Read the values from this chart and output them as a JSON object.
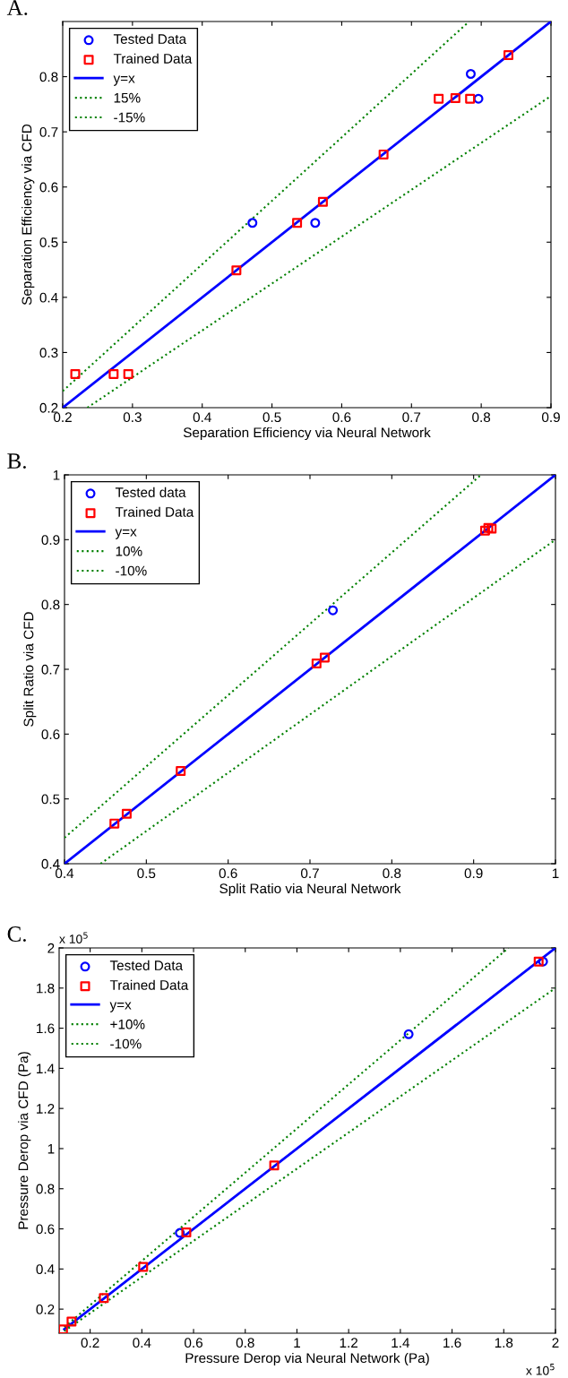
{
  "chart_data": [
    {
      "type": "scatter",
      "title": "A.",
      "xlabel": "Separation Efficiency via Neural Network",
      "ylabel": "Separation Efficiency via CFD",
      "xlim": [
        0.2,
        0.9
      ],
      "ylim": [
        0.2,
        0.9
      ],
      "xticks": [
        0.2,
        0.3,
        0.4,
        0.5,
        0.6,
        0.7,
        0.8,
        0.9
      ],
      "yticks": [
        0.2,
        0.3,
        0.4,
        0.5,
        0.6,
        0.7,
        0.8
      ],
      "grid": false,
      "legend": "top left",
      "series": [
        {
          "name": "Tested Data",
          "marker": "circle",
          "color": "#0000ff",
          "x": [
            0.472,
            0.562,
            0.785,
            0.796
          ],
          "values": [
            0.535,
            0.535,
            0.805,
            0.76
          ]
        },
        {
          "name": "Trained Data",
          "marker": "square",
          "color": "#ff0000",
          "x": [
            0.218,
            0.273,
            0.294,
            0.449,
            0.536,
            0.573,
            0.66,
            0.739,
            0.763,
            0.784,
            0.839
          ],
          "values": [
            0.261,
            0.261,
            0.261,
            0.449,
            0.535,
            0.573,
            0.659,
            0.76,
            0.761,
            0.76,
            0.839
          ]
        },
        {
          "name": "y=x",
          "type": "line",
          "line_style": "solid",
          "color": "#0000ff",
          "x": [
            0.2,
            0.9
          ],
          "values": [
            0.2,
            0.9
          ]
        },
        {
          "name": "15%",
          "type": "line",
          "line_style": "dotted",
          "color": "#008000",
          "x": [
            0.2,
            0.7826
          ],
          "values": [
            0.23,
            0.9
          ]
        },
        {
          "name": "-15%",
          "type": "line",
          "line_style": "dotted",
          "color": "#008000",
          "x": [
            0.2353,
            0.9
          ],
          "values": [
            0.2,
            0.765
          ]
        }
      ]
    },
    {
      "type": "scatter",
      "title": "B.",
      "xlabel": "Split Ratio via Neural Network",
      "ylabel": "Split Ratio via CFD",
      "xlim": [
        0.4,
        1
      ],
      "ylim": [
        0.4,
        1
      ],
      "xticks": [
        0.4,
        0.5,
        0.6,
        0.7,
        0.8,
        0.9,
        1
      ],
      "yticks": [
        0.4,
        0.5,
        0.6,
        0.7,
        0.8,
        0.9,
        1
      ],
      "grid": false,
      "legend": "top left",
      "series": [
        {
          "name": "Tested data",
          "marker": "circle",
          "color": "#0000ff",
          "x": [
            0.728
          ],
          "values": [
            0.791
          ]
        },
        {
          "name": "Trained Data",
          "marker": "square",
          "color": "#ff0000",
          "x": [
            0.461,
            0.476,
            0.542,
            0.708,
            0.718,
            0.914,
            0.918,
            0.922
          ],
          "values": [
            0.462,
            0.477,
            0.543,
            0.709,
            0.718,
            0.914,
            0.918,
            0.917
          ]
        },
        {
          "name": "y=x",
          "type": "line",
          "line_style": "solid",
          "color": "#0000ff",
          "x": [
            0.4,
            1
          ],
          "values": [
            0.4,
            1
          ]
        },
        {
          "name": "10%",
          "type": "line",
          "line_style": "dotted",
          "color": "#008000",
          "x": [
            0.4,
            0.909
          ],
          "values": [
            0.44,
            1
          ]
        },
        {
          "name": "-10%",
          "type": "line",
          "line_style": "dotted",
          "color": "#008000",
          "x": [
            0.444,
            1
          ],
          "values": [
            0.4,
            0.9
          ]
        }
      ]
    },
    {
      "type": "scatter",
      "title": "C.",
      "xlabel": "Pressure Derop via Neural Network (Pa)",
      "ylabel": "Pressure Derop via CFD (Pa)",
      "annotations": [
        "x 10$^{5}$",
        "x 10$^{5}$"
      ],
      "xlim": [
        0.08,
        2
      ],
      "ylim": [
        0.08,
        2
      ],
      "xticks": [
        0.2,
        0.4,
        0.6,
        0.8,
        1,
        1.2,
        1.4,
        1.6,
        1.8,
        2
      ],
      "yticks": [
        0.2,
        0.4,
        0.6,
        0.8,
        1,
        1.2,
        1.4,
        1.6,
        1.8,
        2
      ],
      "grid": false,
      "legend": "top left",
      "series": [
        {
          "name": "Tested Data",
          "marker": "circle",
          "color": "#0000ff",
          "x": [
            0.547,
            1.432,
            1.952
          ],
          "values": [
            0.58,
            1.57,
            1.932
          ]
        },
        {
          "name": "Trained Data",
          "marker": "square",
          "color": "#ff0000",
          "x": [
            0.095,
            0.128,
            0.253,
            0.405,
            0.572,
            0.912,
            1.935
          ],
          "values": [
            0.099,
            0.138,
            0.255,
            0.41,
            0.582,
            0.916,
            1.932
          ]
        },
        {
          "name": "y=x",
          "type": "line",
          "line_style": "solid",
          "color": "#0000ff",
          "x": [
            0.1,
            2
          ],
          "values": [
            0.1,
            2
          ]
        },
        {
          "name": "+10%",
          "type": "line",
          "line_style": "dotted",
          "color": "#008000",
          "x": [
            0.1,
            1.818
          ],
          "values": [
            0.11,
            2
          ]
        },
        {
          "name": "-10%",
          "type": "line",
          "line_style": "dotted",
          "color": "#008000",
          "x": [
            0.1,
            2
          ],
          "values": [
            0.09,
            1.8
          ]
        }
      ]
    }
  ]
}
